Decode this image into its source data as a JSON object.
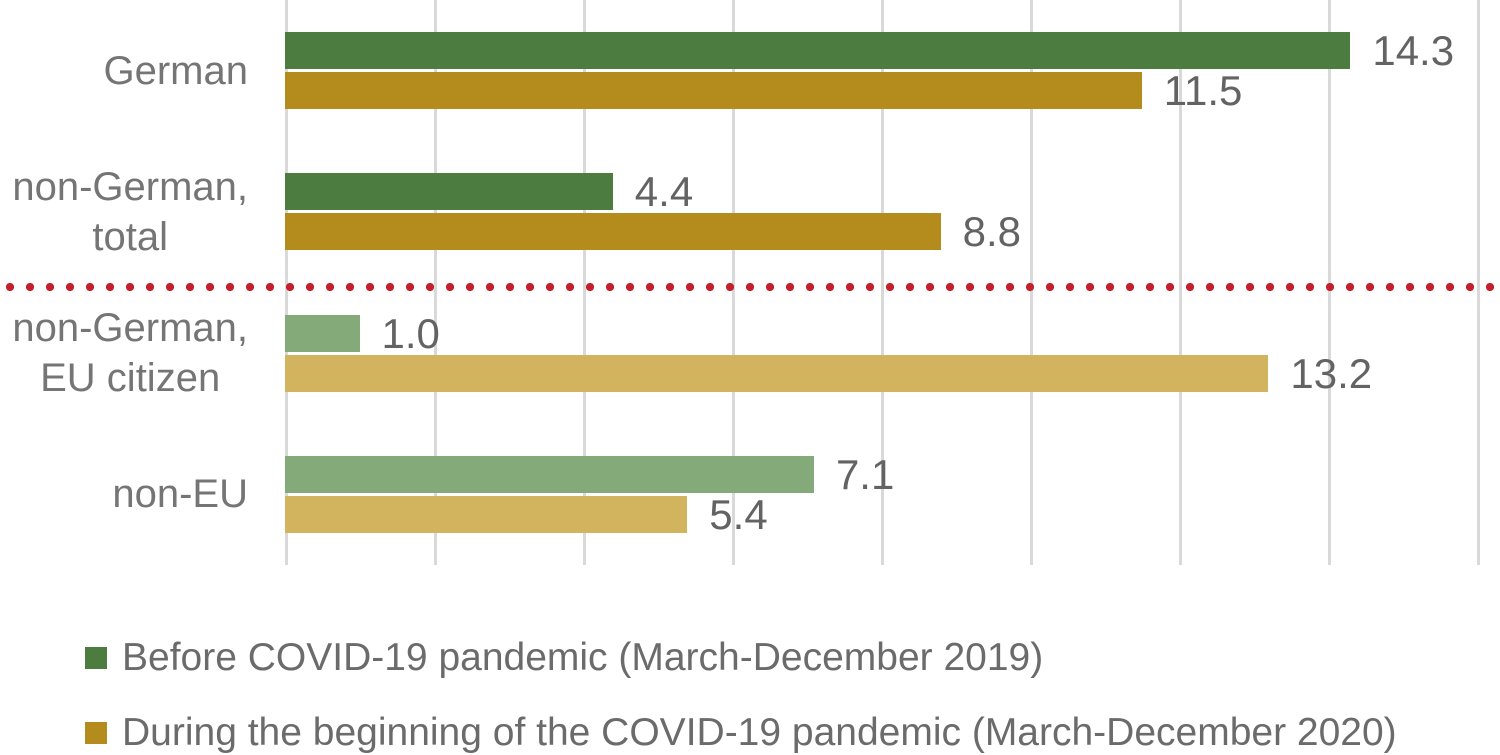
{
  "chart_data": {
    "type": "bar",
    "orientation": "horizontal",
    "title": "",
    "xlabel": "",
    "ylabel": "",
    "categories": [
      "German",
      "non-German,\ntotal",
      "non-German,\nEU citizen",
      "non-EU"
    ],
    "series": [
      {
        "name": "Before COVID-19 pandemic (March-December 2019)",
        "values": [
          14.3,
          4.4,
          1.0,
          7.1
        ]
      },
      {
        "name": "During the beginning of the COVID-19 pandemic (March-December 2020)",
        "values": [
          11.5,
          8.8,
          13.2,
          5.4
        ]
      }
    ],
    "xlim": [
      0,
      16
    ],
    "gridline_interval": 2,
    "grid": true,
    "legend_position": "bottom",
    "divider_after_category_index": 1,
    "value_label_decimals": 1
  },
  "colors": {
    "series": [
      {
        "dark": "#4d7c40",
        "light": "#83aa78"
      },
      {
        "dark": "#b38c1d",
        "light": "#d3b45e"
      }
    ],
    "divider_red": "#c2202b",
    "gridline": "#d9d9d9",
    "category_label": "#757575",
    "value_label": "#636363",
    "legend_text": "#6b6b6b"
  }
}
